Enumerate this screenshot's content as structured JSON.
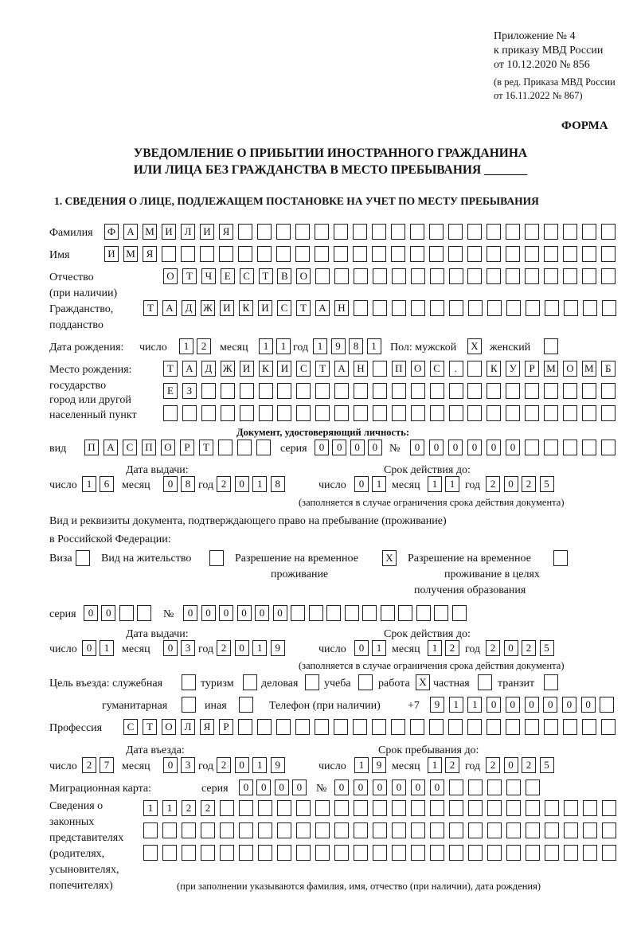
{
  "header": {
    "appendix": "Приложение № 4",
    "order_ref": "к приказу МВД России",
    "order_date": "от 10.12.2020 № 856",
    "revision_1": "(в ред. Приказа МВД России",
    "revision_2": "от 16.11.2022 № 867)",
    "form_label": "ФОРМА",
    "title_1": "УВЕДОМЛЕНИЕ О ПРИБЫТИИ ИНОСТРАННОГО ГРАЖДАНИНА",
    "title_2": "ИЛИ ЛИЦА БЕЗ ГРАЖДАНСТВА В МЕСТО ПРЕБЫВАНИЯ _______",
    "section_1": "1. СВЕДЕНИЯ О ЛИЦЕ, ПОДЛЕЖАЩЕМ ПОСТАНОВКЕ НА УЧЕТ ПО МЕСТУ ПРЕБЫВАНИЯ"
  },
  "labels": {
    "surname": "Фамилия",
    "name": "Имя",
    "patronymic": "Отчество",
    "patronymic_note": "(при наличии)",
    "citizenship": "Гражданство,",
    "citizenship_2": "подданство",
    "birth_date": "Дата рождения:",
    "day": "число",
    "month": "месяц",
    "year": "год",
    "sex": "Пол: мужской",
    "female": "женский",
    "birthplace_1": "Место рождения:",
    "birthplace_2": "государство",
    "birthplace_3": "город или другой",
    "birthplace_4": "населенный пункт",
    "id_doc": "Документ, удостоверяющий личность:",
    "kind": "вид",
    "series": "серия",
    "number": "№",
    "issue_date": "Дата выдачи:",
    "valid_until": "Срок действия до:",
    "validity_note": "(заполняется в случае ограничения срока действия документа)",
    "residence_doc_1": "Вид и реквизиты документа, подтверждающего право на пребывание (проживание)",
    "residence_doc_2": "в Российской Федерации:",
    "visa": "Виза",
    "residence_permit": "Вид на жительство",
    "temp_permit_1": "Разрешение на временное",
    "temp_permit_2": "проживание",
    "temp_edu_1": "Разрешение на временное",
    "temp_edu_2": "проживание в целях",
    "temp_edu_3": "получения образования",
    "purpose": "Цель въезда: служебная",
    "tourism": "туризм",
    "business": "деловая",
    "study": "учеба",
    "work": "работа",
    "private": "частная",
    "transit": "транзит",
    "humanitarian": "гуманитарная",
    "other": "иная",
    "phone": "Телефон (при наличии)",
    "phone_prefix": "+7",
    "profession": "Профессия",
    "entry_date": "Дата въезда:",
    "stay_until": "Срок пребывания до:",
    "migration_card": "Миграционная карта:",
    "reps_1": "Сведения о",
    "reps_2": "законных",
    "reps_3": "представителях",
    "reps_4": "(родителях,",
    "reps_5": "усыновителях,",
    "reps_6": "попечителях)",
    "reps_note": "(при заполнении указываются фамилия, имя, отчество (при наличии), дата рождения)"
  },
  "fields": {
    "surname": "ФАМИЛИЯ",
    "name": "ИМЯ",
    "patronymic": "ОТЧЕСТВО",
    "citizenship": "ТАДЖИКИСТАН",
    "birth_day": "12",
    "birth_month": "11",
    "birth_year": "1981",
    "sex_male": "X",
    "sex_female": "",
    "birthplace_1": "ТАДЖИКИСТАН ПОС. КУРМОМБ",
    "birthplace_2": "ЕЗ",
    "birthplace_3": "",
    "id_kind": "ПАСПОРТ",
    "id_series": "0000",
    "id_number": "000000",
    "id_issue_day": "16",
    "id_issue_month": "08",
    "id_issue_year": "2018",
    "id_valid_day": "01",
    "id_valid_month": "11",
    "id_valid_year": "2025",
    "visa": "",
    "residence_permit": "",
    "temp_permit": "X",
    "temp_edu": "",
    "res_series": "00",
    "res_number": "000000",
    "res_issue_day": "01",
    "res_issue_month": "03",
    "res_issue_year": "2019",
    "res_valid_day": "01",
    "res_valid_month": "12",
    "res_valid_year": "2025",
    "purpose_official": "",
    "purpose_tourism": "",
    "purpose_business": "",
    "purpose_study": "",
    "purpose_work": "X",
    "purpose_private": "",
    "purpose_transit": "",
    "purpose_humanitarian": "",
    "purpose_other": "",
    "phone": "911000000",
    "profession": "СТОЛЯР",
    "entry_day": "27",
    "entry_month": "03",
    "entry_year": "2019",
    "stay_day": "19",
    "stay_month": "12",
    "stay_year": "2025",
    "mc_series": "0000",
    "mc_number": "000000",
    "reps_1": "1122",
    "reps_2": "",
    "reps_3": ""
  }
}
